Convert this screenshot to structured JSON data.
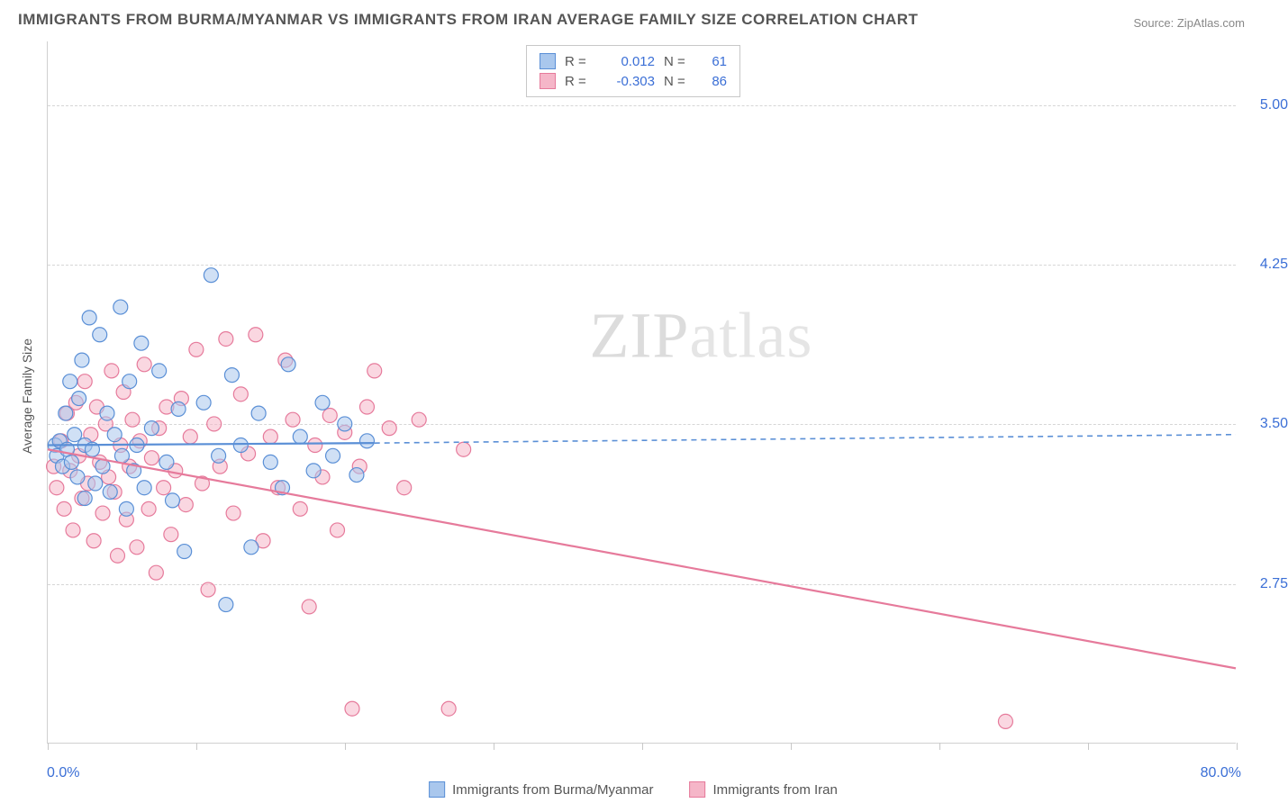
{
  "title": "IMMIGRANTS FROM BURMA/MYANMAR VS IMMIGRANTS FROM IRAN AVERAGE FAMILY SIZE CORRELATION CHART",
  "source_label": "Source: ",
  "source_value": "ZipAtlas.com",
  "watermark_a": "ZIP",
  "watermark_b": "atlas",
  "y_axis_label": "Average Family Size",
  "chart": {
    "type": "scatter",
    "xlim": [
      0,
      80
    ],
    "ylim": [
      2.0,
      5.3
    ],
    "x_start_label": "0.0%",
    "x_end_label": "80.0%",
    "y_ticks": [
      2.75,
      3.5,
      4.25,
      5.0
    ],
    "y_tick_labels": [
      "2.75",
      "3.50",
      "4.25",
      "5.00"
    ],
    "x_ticks": [
      0,
      10,
      20,
      30,
      40,
      50,
      60,
      70,
      80
    ],
    "background_color": "#ffffff",
    "grid_color": "#d6d6d6",
    "marker_radius": 8,
    "marker_stroke_width": 1.2,
    "trend_line_width": 2.2,
    "series": [
      {
        "name": "Immigrants from Burma/Myanmar",
        "fill": "#a9c7ed",
        "stroke": "#5a8fd6",
        "fill_opacity": 0.55,
        "r_value": "0.012",
        "n_value": "61",
        "trend": {
          "x1": 0,
          "y1": 3.4,
          "x2_solid": 22,
          "y2_solid": 3.41,
          "x2": 80,
          "y2": 3.45
        },
        "points": [
          [
            0.5,
            3.4
          ],
          [
            0.6,
            3.35
          ],
          [
            0.8,
            3.42
          ],
          [
            1.0,
            3.3
          ],
          [
            1.2,
            3.55
          ],
          [
            1.3,
            3.38
          ],
          [
            1.5,
            3.7
          ],
          [
            1.6,
            3.32
          ],
          [
            1.8,
            3.45
          ],
          [
            2.0,
            3.25
          ],
          [
            2.1,
            3.62
          ],
          [
            2.3,
            3.8
          ],
          [
            2.5,
            3.15
          ],
          [
            2.5,
            3.4
          ],
          [
            2.8,
            4.0
          ],
          [
            3.0,
            3.38
          ],
          [
            3.2,
            3.22
          ],
          [
            3.5,
            3.92
          ],
          [
            3.7,
            3.3
          ],
          [
            4.0,
            3.55
          ],
          [
            4.2,
            3.18
          ],
          [
            4.5,
            3.45
          ],
          [
            4.9,
            4.05
          ],
          [
            5.0,
            3.35
          ],
          [
            5.3,
            3.1
          ],
          [
            5.5,
            3.7
          ],
          [
            5.8,
            3.28
          ],
          [
            6.0,
            3.4
          ],
          [
            6.3,
            3.88
          ],
          [
            6.5,
            3.2
          ],
          [
            7.0,
            3.48
          ],
          [
            7.5,
            3.75
          ],
          [
            8.0,
            3.32
          ],
          [
            8.4,
            3.14
          ],
          [
            8.8,
            3.57
          ],
          [
            9.2,
            2.9
          ],
          [
            10.5,
            3.6
          ],
          [
            11.0,
            4.2
          ],
          [
            11.5,
            3.35
          ],
          [
            12.0,
            2.65
          ],
          [
            12.4,
            3.73
          ],
          [
            13.0,
            3.4
          ],
          [
            13.7,
            2.92
          ],
          [
            14.2,
            3.55
          ],
          [
            15.0,
            3.32
          ],
          [
            15.8,
            3.2
          ],
          [
            16.2,
            3.78
          ],
          [
            17.0,
            3.44
          ],
          [
            17.9,
            3.28
          ],
          [
            18.5,
            3.6
          ],
          [
            19.2,
            3.35
          ],
          [
            20.0,
            3.5
          ],
          [
            20.8,
            3.26
          ],
          [
            21.5,
            3.42
          ]
        ]
      },
      {
        "name": "Immigrants from Iran",
        "fill": "#f5b6c8",
        "stroke": "#e67a9b",
        "fill_opacity": 0.55,
        "r_value": "-0.303",
        "n_value": "86",
        "trend": {
          "x1": 0,
          "y1": 3.38,
          "x2_solid": 80,
          "y2_solid": 2.35,
          "x2": 80,
          "y2": 2.35
        },
        "points": [
          [
            0.4,
            3.3
          ],
          [
            0.6,
            3.2
          ],
          [
            0.9,
            3.42
          ],
          [
            1.1,
            3.1
          ],
          [
            1.3,
            3.55
          ],
          [
            1.5,
            3.28
          ],
          [
            1.7,
            3.0
          ],
          [
            1.9,
            3.6
          ],
          [
            2.1,
            3.35
          ],
          [
            2.3,
            3.15
          ],
          [
            2.5,
            3.7
          ],
          [
            2.7,
            3.22
          ],
          [
            2.9,
            3.45
          ],
          [
            3.1,
            2.95
          ],
          [
            3.3,
            3.58
          ],
          [
            3.5,
            3.32
          ],
          [
            3.7,
            3.08
          ],
          [
            3.9,
            3.5
          ],
          [
            4.1,
            3.25
          ],
          [
            4.3,
            3.75
          ],
          [
            4.5,
            3.18
          ],
          [
            4.7,
            2.88
          ],
          [
            4.9,
            3.4
          ],
          [
            5.1,
            3.65
          ],
          [
            5.3,
            3.05
          ],
          [
            5.5,
            3.3
          ],
          [
            5.7,
            3.52
          ],
          [
            6.0,
            2.92
          ],
          [
            6.2,
            3.42
          ],
          [
            6.5,
            3.78
          ],
          [
            6.8,
            3.1
          ],
          [
            7.0,
            3.34
          ],
          [
            7.3,
            2.8
          ],
          [
            7.5,
            3.48
          ],
          [
            7.8,
            3.2
          ],
          [
            8.0,
            3.58
          ],
          [
            8.3,
            2.98
          ],
          [
            8.6,
            3.28
          ],
          [
            9.0,
            3.62
          ],
          [
            9.3,
            3.12
          ],
          [
            9.6,
            3.44
          ],
          [
            10.0,
            3.85
          ],
          [
            10.4,
            3.22
          ],
          [
            10.8,
            2.72
          ],
          [
            11.2,
            3.5
          ],
          [
            11.6,
            3.3
          ],
          [
            12.0,
            3.9
          ],
          [
            12.5,
            3.08
          ],
          [
            13.0,
            3.64
          ],
          [
            13.5,
            3.36
          ],
          [
            14.0,
            3.92
          ],
          [
            14.5,
            2.95
          ],
          [
            15.0,
            3.44
          ],
          [
            15.5,
            3.2
          ],
          [
            16.0,
            3.8
          ],
          [
            16.5,
            3.52
          ],
          [
            17.0,
            3.1
          ],
          [
            17.6,
            2.64
          ],
          [
            18.0,
            3.4
          ],
          [
            18.5,
            3.25
          ],
          [
            19.0,
            3.54
          ],
          [
            19.5,
            3.0
          ],
          [
            20.0,
            3.46
          ],
          [
            20.5,
            2.16
          ],
          [
            21.0,
            3.3
          ],
          [
            21.5,
            3.58
          ],
          [
            22.0,
            3.75
          ],
          [
            23.0,
            3.48
          ],
          [
            24.0,
            3.2
          ],
          [
            25.0,
            3.52
          ],
          [
            27.0,
            2.16
          ],
          [
            28.0,
            3.38
          ],
          [
            64.5,
            2.1
          ]
        ]
      }
    ]
  },
  "legend_top": {
    "r_label": "R =",
    "n_label": "N ="
  },
  "legend_bottom": {
    "series1_label": "Immigrants from Burma/Myanmar",
    "series2_label": "Immigrants from Iran"
  }
}
